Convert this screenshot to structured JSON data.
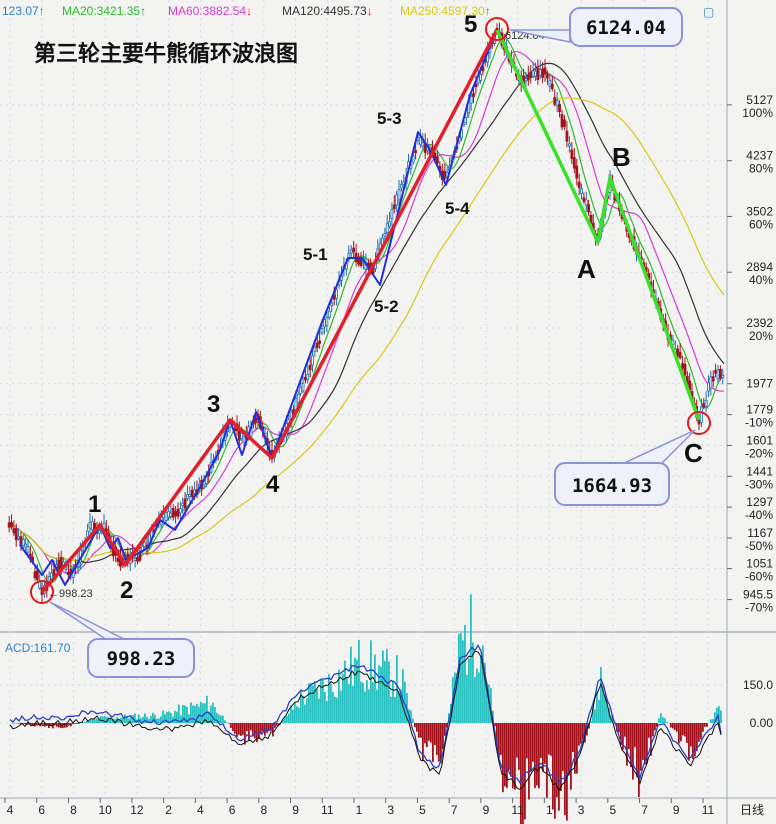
{
  "header": {
    "ma_items": [
      {
        "label": "123.07",
        "arrow": "↑",
        "color": "#2a7fd4"
      },
      {
        "label": "MA20:3421.35",
        "arrow": "↑",
        "color": "#2fb82f"
      },
      {
        "label": "MA60:3882.54",
        "arrow": "↓",
        "color": "#d63ad6"
      },
      {
        "label": "MA120:4495.73",
        "arrow": "↓",
        "color": "#333333"
      },
      {
        "label": "MA250:4597.30",
        "arrow": "↑",
        "color": "#d8c81a"
      }
    ],
    "acd_label": "ACD:161.70"
  },
  "chart_data": [
    {
      "type": "line",
      "title": "第三轮主要牛熊循环波浪图",
      "yscale": "log",
      "ylim": [
        900,
        6600
      ],
      "y_ticks": [
        {
          "price": "5127",
          "pct": "100%"
        },
        {
          "price": "4237",
          "pct": "80%"
        },
        {
          "price": "3502",
          "pct": "60%"
        },
        {
          "price": "2894",
          "pct": "40%"
        },
        {
          "price": "2392",
          "pct": "20%"
        },
        {
          "price": "1977",
          "pct": ""
        },
        {
          "price": "1779",
          "pct": "-10%"
        },
        {
          "price": "1601",
          "pct": "-20%"
        },
        {
          "price": "1441",
          "pct": "-30%"
        },
        {
          "price": "1297",
          "pct": "-40%"
        },
        {
          "price": "1167",
          "pct": "-50%"
        },
        {
          "price": "1051",
          "pct": "-60%"
        },
        {
          "price": "945.5",
          "pct": "-70%"
        }
      ],
      "wave_labels": [
        "1",
        "2",
        "3",
        "4",
        "5",
        "5-1",
        "5-2",
        "5-3",
        "5-4",
        "A",
        "B",
        "C"
      ],
      "wave_path": [
        998.23,
        1300,
        1030,
        1760,
        1370,
        6124.04,
        2990,
        3700,
        1664.93
      ],
      "callouts": {
        "low_start": "998.23",
        "high": "6124.04",
        "low_end": "1664.93"
      },
      "peak_label": "6124.04",
      "start_low_label": "998.23",
      "series": [
        {
          "name": "MA20",
          "color": "#2fb82f"
        },
        {
          "name": "MA60",
          "color": "#d63ad6"
        },
        {
          "name": "MA120",
          "color": "#333333"
        },
        {
          "name": "MA250",
          "color": "#d8c81a"
        }
      ]
    },
    {
      "type": "bar",
      "ylim": [
        -200,
        250
      ],
      "y_ticks": [
        "150.0",
        "0.00"
      ],
      "label": "ACD:161.70"
    }
  ],
  "x_axis": {
    "ticks": [
      "4",
      "6",
      "8",
      "10",
      "12",
      "2",
      "4",
      "6",
      "8",
      "9",
      "11",
      "1",
      "3",
      "5",
      "7",
      "9",
      "11",
      "1",
      "3",
      "5",
      "7",
      "9",
      "11"
    ],
    "end_label": "日线"
  },
  "colors": {
    "bg": "#f3f4f1",
    "up": "#2bc0c0",
    "down": "#a3141e",
    "wave_red": "#e0202a",
    "wave_blue": "#1f2fd8",
    "wave_green": "#38e02a"
  }
}
